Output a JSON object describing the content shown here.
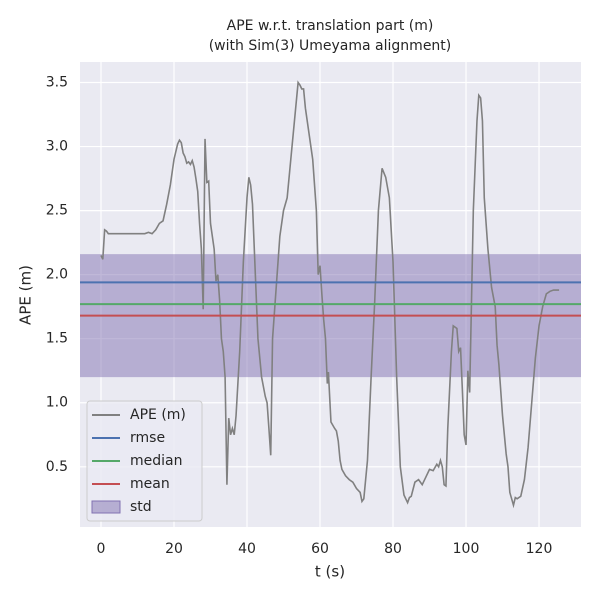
{
  "chart_data": {
    "type": "line",
    "title": [
      "APE w.r.t. translation part (m)",
      "(with Sim(3) Umeyama alignment)"
    ],
    "x_label": "t (s)",
    "y_label": "APE (m)",
    "xlim": [
      -5.75,
      131.5
    ],
    "ylim": [
      0.03,
      3.66
    ],
    "xticks": [
      0,
      20,
      40,
      60,
      80,
      100,
      120
    ],
    "yticks": [
      0.5,
      {
        "value": 1,
        "label": "1.0"
      },
      1.5,
      {
        "value": 2,
        "label": "2.0"
      },
      2.5,
      {
        "value": 3,
        "label": "3.0"
      },
      3.5
    ],
    "grid": true,
    "legend": "lower left",
    "series": [
      {
        "name": "APE (m)",
        "kind": "line",
        "color": "#808080",
        "x": [
          0,
          0.5,
          1,
          1.5,
          2,
          5,
          10,
          12,
          13,
          14,
          15,
          16,
          17,
          18,
          19,
          20,
          21,
          21.5,
          22,
          22.5,
          23,
          23.5,
          24,
          24.5,
          25,
          25.5,
          26,
          26.5,
          27,
          27.5,
          28,
          28.5,
          29,
          29.5,
          30,
          31,
          31.5,
          32,
          32.5,
          33,
          33.5,
          34,
          34.5,
          35,
          35.5,
          36,
          36.5,
          37,
          38,
          39,
          40,
          40.5,
          41,
          41.5,
          42,
          43,
          44,
          45,
          45.5,
          46,
          46.5,
          47,
          48,
          49,
          50,
          51,
          52,
          53,
          54,
          54.5,
          55,
          55.5,
          56,
          57,
          58,
          59,
          59.5,
          60,
          60.5,
          61,
          61.5,
          62,
          62.3,
          63,
          64,
          64.5,
          65,
          65.5,
          66,
          67,
          68,
          69,
          70,
          71,
          71.5,
          72,
          73,
          74,
          75,
          76,
          77,
          78,
          79,
          80,
          81,
          82,
          83,
          84,
          84.5,
          85,
          86,
          87,
          88,
          89,
          90,
          91,
          92,
          92.5,
          93,
          93.5,
          94,
          94.5,
          95,
          96,
          96.5,
          97.5,
          98,
          98.5,
          99,
          99.5,
          100,
          100.5,
          101,
          102,
          103,
          103.5,
          104,
          104.5,
          105,
          106,
          107,
          108,
          108.5,
          109,
          110,
          111,
          111.5,
          112,
          113,
          113.5,
          114,
          115,
          116,
          117,
          118,
          119,
          120,
          121,
          122,
          123,
          124,
          125.5
        ],
        "values": [
          2.15,
          2.12,
          2.35,
          2.34,
          2.32,
          2.32,
          2.32,
          2.32,
          2.33,
          2.32,
          2.35,
          2.4,
          2.42,
          2.55,
          2.7,
          2.9,
          3.02,
          3.05,
          3.03,
          2.95,
          2.92,
          2.87,
          2.88,
          2.86,
          2.89,
          2.84,
          2.75,
          2.65,
          2.4,
          2.2,
          1.73,
          3.06,
          2.72,
          2.73,
          2.4,
          2.2,
          1.95,
          2.0,
          1.8,
          1.5,
          1.4,
          1.2,
          0.36,
          0.88,
          0.75,
          0.8,
          0.75,
          0.9,
          1.4,
          2.1,
          2.6,
          2.76,
          2.7,
          2.55,
          2.2,
          1.5,
          1.2,
          1.05,
          1.0,
          0.8,
          0.59,
          1.5,
          1.9,
          2.3,
          2.5,
          2.6,
          2.9,
          3.2,
          3.5,
          3.48,
          3.45,
          3.45,
          3.3,
          3.1,
          2.9,
          2.5,
          2.0,
          2.07,
          1.85,
          1.65,
          1.5,
          1.15,
          1.24,
          0.85,
          0.8,
          0.78,
          0.7,
          0.55,
          0.48,
          0.43,
          0.4,
          0.38,
          0.33,
          0.3,
          0.23,
          0.25,
          0.55,
          1.2,
          1.8,
          2.5,
          2.83,
          2.76,
          2.6,
          2.1,
          1.2,
          0.5,
          0.28,
          0.22,
          0.26,
          0.27,
          0.38,
          0.4,
          0.36,
          0.42,
          0.48,
          0.47,
          0.52,
          0.5,
          0.55,
          0.5,
          0.36,
          0.35,
          0.8,
          1.4,
          1.6,
          1.58,
          1.4,
          1.43,
          1.1,
          0.75,
          0.67,
          1.25,
          1.08,
          2.5,
          3.2,
          3.4,
          3.38,
          3.2,
          2.6,
          2.2,
          1.9,
          1.75,
          1.45,
          1.3,
          0.9,
          0.6,
          0.5,
          0.3,
          0.2,
          0.26,
          0.25,
          0.27,
          0.4,
          0.65,
          1.0,
          1.35,
          1.6,
          1.75,
          1.85,
          1.87,
          1.88,
          1.88
        ]
      },
      {
        "name": "rmse",
        "kind": "hline",
        "color": "#4c72b0",
        "value": 1.94
      },
      {
        "name": "median",
        "kind": "hline",
        "color": "#55a868",
        "value": 1.77
      },
      {
        "name": "mean",
        "kind": "hline",
        "color": "#c44e52",
        "value": 1.68
      },
      {
        "name": "std",
        "kind": "band",
        "color": "#8172b2",
        "value": 0.48
      }
    ]
  }
}
